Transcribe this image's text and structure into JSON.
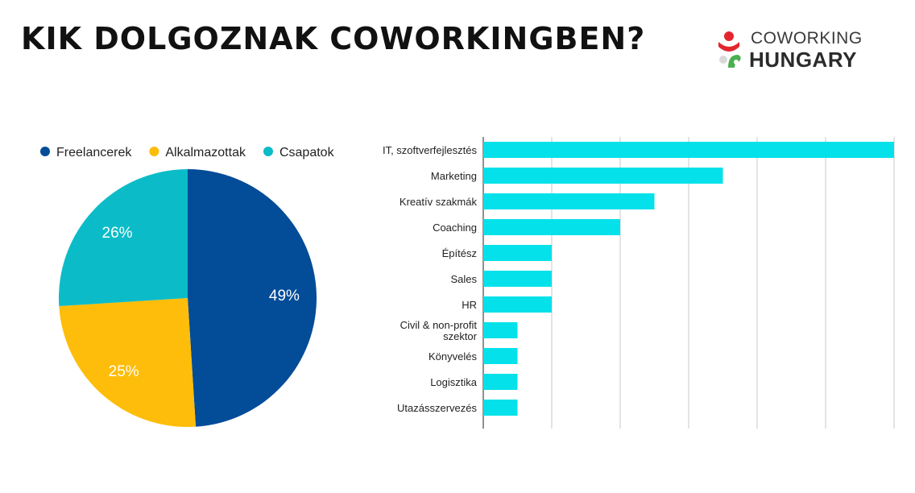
{
  "header": {
    "title": "KIK DOLGOZNAK COWORKINGBEN?",
    "logo_top": "COWORKING",
    "logo_bottom": "HUNGARY"
  },
  "colors": {
    "freelancerek": "#024C98",
    "alkalmazottak": "#FDBD0A",
    "csapatok": "#0BBCC8",
    "bar": "#05E1EA",
    "logo_red": "#E3262E",
    "logo_green": "#4CAF50"
  },
  "chart_data": [
    {
      "type": "pie",
      "legend_position": "top",
      "slices": [
        {
          "label": "Freelancerek",
          "value": 49,
          "display": "49%",
          "color": "#024C98"
        },
        {
          "label": "Alkalmazottak",
          "value": 25,
          "display": "25%",
          "color": "#FDBD0A"
        },
        {
          "label": "Csapatok",
          "value": 26,
          "display": "26%",
          "color": "#0BBCC8"
        }
      ]
    },
    {
      "type": "bar",
      "orientation": "horizontal",
      "grid": true,
      "xlim": [
        0,
        12
      ],
      "categories": [
        "IT, szoftverfejlesztés",
        "Marketing",
        "Kreatív szakmák",
        "Coaching",
        "Építész",
        "Sales",
        "HR",
        "Civil & non-profit szektor",
        "Könyvelés",
        "Logisztika",
        "Utazásszervezés"
      ],
      "values": [
        12,
        7,
        5,
        4,
        2,
        2,
        2,
        1,
        1,
        1,
        1
      ]
    }
  ]
}
